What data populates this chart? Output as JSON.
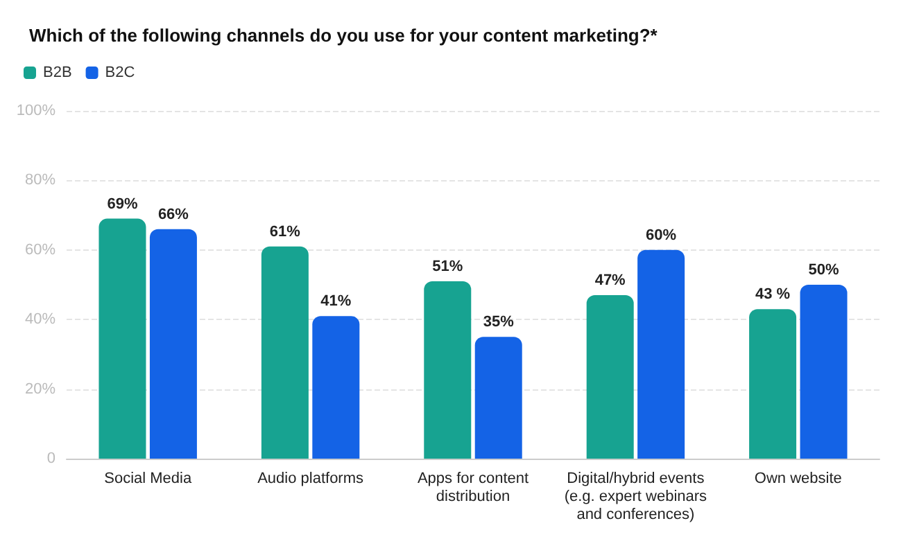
{
  "chart_data": {
    "type": "bar",
    "title": "Which of the following channels do you use for your content marketing?*",
    "categories": [
      "Social Media",
      "Audio platforms",
      "Apps for content\ndistribution",
      "Digital/hybrid events\n(e.g. expert webinars\nand conferences)",
      "Own website"
    ],
    "series": [
      {
        "name": "B2B",
        "color": "#17a391",
        "values": [
          69,
          61,
          51,
          47,
          43
        ],
        "value_labels": [
          "69%",
          "61%",
          "51%",
          "47%",
          "43 %"
        ]
      },
      {
        "name": "B2C",
        "color": "#1463e6",
        "values": [
          66,
          41,
          35,
          60,
          50
        ],
        "value_labels": [
          "66%",
          "41%",
          "35%",
          "60%",
          "50%"
        ]
      }
    ],
    "ylim": [
      0,
      100
    ],
    "yticks": [
      0,
      {
        "value": 20,
        "label": "20%"
      },
      {
        "value": 40,
        "label": "40%"
      },
      {
        "value": 60,
        "label": "60%"
      },
      {
        "value": 80,
        "label": "80%"
      },
      {
        "value": 100,
        "label": "100%"
      }
    ],
    "grid": "y",
    "legend": "top left"
  }
}
